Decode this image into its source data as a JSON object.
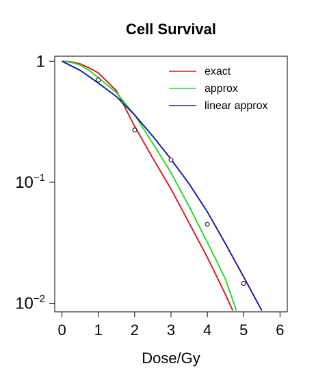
{
  "chart_data": {
    "type": "line",
    "title": "Cell Survival",
    "xlabel": "Dose/Gy",
    "ylabel": "",
    "xlim": [
      -0.2,
      6.2
    ],
    "ylim": [
      0.0085,
      1.1
    ],
    "y_scale": "log",
    "grid": false,
    "legend_position": "top-right",
    "x_ticks": [
      "0",
      "1",
      "2",
      "3",
      "4",
      "5",
      "6"
    ],
    "y_ticks": [
      {
        "value": 1,
        "base": "1",
        "exp": ""
      },
      {
        "value": 0.1,
        "base": "10",
        "exp": "−1"
      },
      {
        "value": 0.01,
        "base": "10",
        "exp": "−2"
      }
    ],
    "series": [
      {
        "name": "exact",
        "color": "#d61f1f",
        "x": [
          0,
          0.25,
          0.5,
          0.75,
          1.0,
          1.5,
          2.0,
          2.5,
          3.0,
          3.5,
          4.0,
          4.5,
          4.7
        ],
        "y": [
          1.0,
          0.99,
          0.95,
          0.88,
          0.8,
          0.57,
          0.29,
          0.158,
          0.088,
          0.046,
          0.024,
          0.0118,
          0.0087
        ]
      },
      {
        "name": "approx",
        "color": "#22dd22",
        "x": [
          0,
          0.25,
          0.5,
          0.75,
          1.0,
          1.5,
          2.0,
          2.5,
          3.0,
          3.5,
          4.0,
          4.5,
          4.8
        ],
        "y": [
          1.0,
          0.98,
          0.93,
          0.84,
          0.73,
          0.55,
          0.36,
          0.21,
          0.12,
          0.063,
          0.032,
          0.0158,
          0.0087
        ]
      },
      {
        "name": "linear approx",
        "color": "#1a1aaa",
        "x": [
          0,
          0.5,
          1.0,
          1.5,
          2.0,
          2.5,
          3.0,
          3.5,
          4.0,
          4.5,
          5.0,
          5.5
        ],
        "y": [
          1.0,
          0.84,
          0.66,
          0.51,
          0.36,
          0.24,
          0.155,
          0.097,
          0.057,
          0.031,
          0.0165,
          0.0087
        ]
      }
    ],
    "points": {
      "name": "",
      "x": [
        1.0,
        2.0,
        3.0,
        4.0,
        5.0
      ],
      "y": [
        0.7,
        0.27,
        0.153,
        0.045,
        0.0146
      ]
    }
  }
}
